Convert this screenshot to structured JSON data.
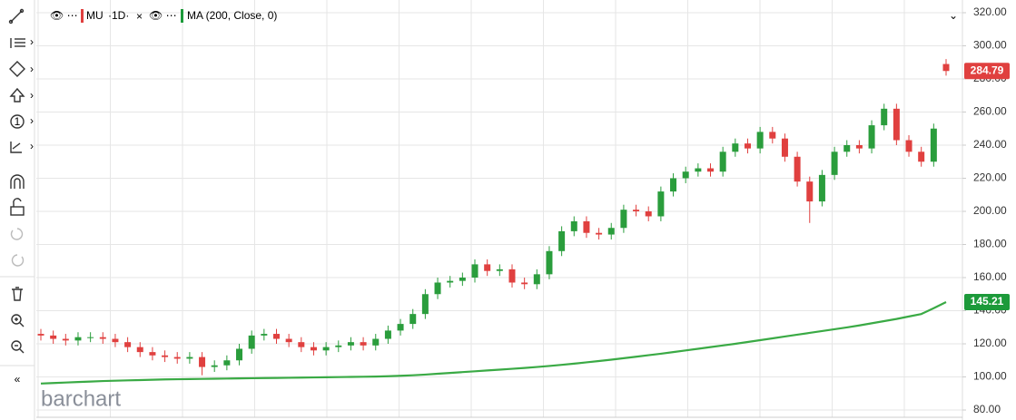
{
  "chart_data": {
    "type": "candlestick",
    "symbol": "MU",
    "interval": "·1D·",
    "indicator": "MA (200, Close, 0)",
    "watermark": "barchart",
    "categories": [
      null,
      null,
      null,
      null,
      null,
      null,
      null,
      null,
      null,
      null,
      null,
      null,
      null,
      null,
      null,
      null,
      null,
      null,
      null,
      null,
      null,
      null,
      null,
      null,
      null,
      null,
      null,
      null,
      null,
      null,
      null,
      null,
      null,
      null,
      null,
      null,
      null,
      null,
      null,
      null,
      null,
      null,
      null,
      null,
      null,
      null,
      null,
      null,
      null,
      null,
      null,
      null,
      null,
      null,
      null,
      null,
      null,
      null,
      null,
      null,
      null,
      null,
      null,
      null,
      null,
      null,
      null,
      null,
      null,
      null,
      null,
      null,
      null,
      null
    ],
    "open": [
      126,
      125,
      123,
      122,
      124,
      124,
      123,
      121,
      118,
      115,
      113,
      112,
      111,
      112,
      106,
      107,
      110,
      117,
      125,
      126,
      123,
      121,
      118,
      116,
      118,
      119,
      121,
      119,
      123,
      128,
      132,
      138,
      150,
      157,
      158,
      160,
      168,
      164,
      165,
      157,
      156,
      162,
      176,
      188,
      194,
      187,
      186,
      190,
      201,
      200,
      197,
      212,
      220,
      224,
      226,
      224,
      236,
      241,
      238,
      248,
      244,
      233,
      218,
      206,
      222,
      236,
      240,
      238,
      252,
      262,
      243,
      236,
      230,
      289
    ],
    "high": [
      129,
      128,
      126,
      127,
      127,
      127,
      126,
      124,
      121,
      118,
      116,
      115,
      115,
      115,
      110,
      113,
      120,
      128,
      129,
      129,
      126,
      124,
      121,
      121,
      122,
      124,
      124,
      126,
      131,
      135,
      141,
      153,
      160,
      161,
      163,
      171,
      171,
      168,
      168,
      160,
      165,
      179,
      191,
      197,
      197,
      190,
      193,
      204,
      204,
      203,
      215,
      223,
      227,
      229,
      229,
      239,
      244,
      244,
      251,
      251,
      247,
      236,
      221,
      225,
      239,
      243,
      243,
      255,
      265,
      265,
      246,
      239,
      253,
      292
    ],
    "low": [
      122,
      120,
      119,
      119,
      121,
      120,
      118,
      115,
      112,
      110,
      109,
      108,
      108,
      101,
      103,
      104,
      107,
      114,
      122,
      120,
      118,
      115,
      113,
      113,
      115,
      116,
      116,
      116,
      120,
      125,
      129,
      135,
      147,
      154,
      155,
      157,
      161,
      161,
      154,
      153,
      153,
      159,
      173,
      185,
      184,
      183,
      183,
      187,
      197,
      194,
      194,
      209,
      217,
      221,
      221,
      221,
      233,
      235,
      235,
      241,
      230,
      215,
      193,
      203,
      219,
      233,
      235,
      235,
      249,
      240,
      233,
      227,
      227,
      282
    ],
    "close": [
      125,
      123,
      122,
      124,
      124,
      123,
      121,
      118,
      115,
      113,
      112,
      111,
      112,
      106,
      107,
      110,
      117,
      125,
      126,
      123,
      121,
      118,
      116,
      118,
      119,
      121,
      119,
      123,
      128,
      132,
      138,
      150,
      157,
      158,
      160,
      168,
      164,
      165,
      157,
      156,
      162,
      176,
      188,
      194,
      187,
      186,
      190,
      201,
      200,
      197,
      212,
      220,
      224,
      226,
      224,
      236,
      241,
      238,
      248,
      244,
      233,
      218,
      206,
      222,
      236,
      240,
      238,
      252,
      262,
      243,
      236,
      230,
      250,
      284.79
    ],
    "up_color": "#2a9d3c",
    "down_color": "#e0403f",
    "series": [
      {
        "name": "MA (200, Close, 0)",
        "color": "#3aaa45",
        "values": [
          96,
          96.3,
          96.6,
          96.9,
          97.2,
          97.5,
          97.7,
          97.9,
          98.1,
          98.3,
          98.5,
          98.6,
          98.7,
          98.8,
          98.9,
          99,
          99.1,
          99.2,
          99.3,
          99.4,
          99.5,
          99.6,
          99.7,
          99.8,
          99.9,
          100,
          100.1,
          100.2,
          100.4,
          100.7,
          101,
          101.4,
          101.9,
          102.4,
          102.9,
          103.4,
          103.9,
          104.4,
          104.9,
          105.4,
          106,
          106.6,
          107.3,
          108,
          108.8,
          109.6,
          110.4,
          111.3,
          112.2,
          113.1,
          114,
          115,
          116,
          117,
          118,
          119,
          120,
          121.1,
          122.2,
          123.3,
          124.4,
          125.5,
          126.6,
          127.7,
          128.8,
          129.9,
          131.1,
          132.4,
          133.7,
          135,
          136.5,
          138,
          141.5,
          145.21
        ]
      }
    ],
    "last_labels": [
      {
        "value": 284.79,
        "label": "284.79",
        "color": "#e0403f"
      },
      {
        "value": 145.21,
        "label": "145.21",
        "color": "#1c9a3a"
      }
    ],
    "ylim": [
      80,
      320
    ],
    "yticks": [
      {
        "value": 80,
        "label": "80.00"
      },
      {
        "value": 100,
        "label": "100.00"
      },
      {
        "value": 120,
        "label": "120.00"
      },
      {
        "value": 140,
        "label": "140.00"
      },
      {
        "value": 160,
        "label": "160.00"
      },
      {
        "value": 180,
        "label": "180.00"
      },
      {
        "value": 200,
        "label": "200.00"
      },
      {
        "value": 220,
        "label": "220.00"
      },
      {
        "value": 240,
        "label": "240.00"
      },
      {
        "value": 260,
        "label": "260.00"
      },
      {
        "value": 280,
        "label": "280.00"
      },
      {
        "value": 300,
        "label": "300.00"
      },
      {
        "value": 320,
        "label": "320.00"
      }
    ],
    "grid": true
  }
}
